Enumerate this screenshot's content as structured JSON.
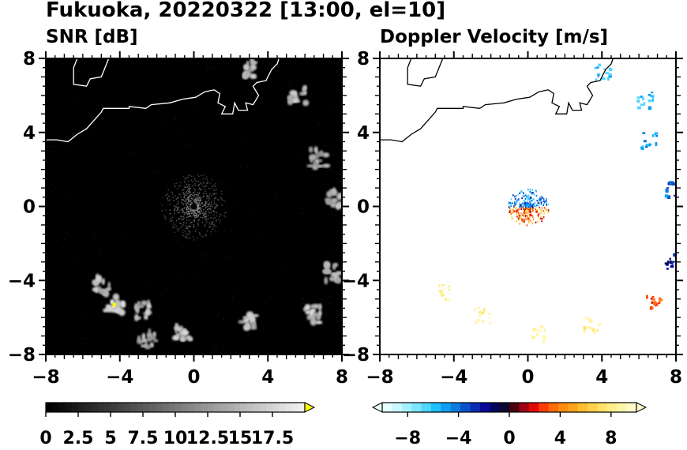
{
  "title": "Fukuoka, 20220322 [13:00, el=10]",
  "chart_data": [
    {
      "type": "heatmap",
      "title": "SNR [dB]",
      "xlim": [
        -8,
        8
      ],
      "ylim": [
        -8,
        8
      ],
      "xticks": [
        "−8",
        "−4",
        "0",
        "4",
        "8"
      ],
      "yticks": [
        "8",
        "4",
        "0",
        "−4",
        "−8"
      ],
      "background": "#000000",
      "colorbar": {
        "ticks": [
          "0",
          "2.5",
          "5",
          "7.5",
          "10",
          "12.5",
          "15",
          "17.5"
        ],
        "range": [
          0,
          20
        ],
        "extend": "max",
        "low_color": "#000000",
        "high_color": "#f0f0f0",
        "over_color": "#ffff00"
      },
      "echo_clusters": [
        {
          "x": 5.6,
          "y": 6.0,
          "level": 14
        },
        {
          "x": 3.2,
          "y": 7.4,
          "level": 13
        },
        {
          "x": 6.7,
          "y": 2.6,
          "level": 12
        },
        {
          "x": 7.7,
          "y": 0.4,
          "level": 12
        },
        {
          "x": 7.4,
          "y": -3.6,
          "level": 14
        },
        {
          "x": 6.4,
          "y": -5.8,
          "level": 14
        },
        {
          "x": 3.0,
          "y": -6.3,
          "level": 13
        },
        {
          "x": -0.5,
          "y": -6.9,
          "level": 14
        },
        {
          "x": -2.5,
          "y": -7.2,
          "level": 12
        },
        {
          "x": -2.8,
          "y": -5.6,
          "level": 13
        },
        {
          "x": -4.3,
          "y": -5.3,
          "level": 16
        },
        {
          "x": -4.9,
          "y": -4.3,
          "level": 14
        }
      ]
    },
    {
      "type": "heatmap",
      "title": "Doppler Velocity [m/s]",
      "xlim": [
        -8,
        8
      ],
      "ylim": [
        -8,
        8
      ],
      "xticks": [
        "−8",
        "−4",
        "0",
        "4",
        "8"
      ],
      "yticks": [
        "8",
        "4",
        "0",
        "−4",
        "−8"
      ],
      "background": "#ffffff",
      "colorbar": {
        "ticks": [
          "−8",
          "−4",
          "0",
          "4",
          "8"
        ],
        "range": [
          -10,
          10
        ],
        "extend": "both",
        "colors": [
          "#e6ffff",
          "#c9f9ff",
          "#a6f1ff",
          "#7de6ff",
          "#4fd6ff",
          "#1fbfff",
          "#0f9ff0",
          "#0b7ce0",
          "#0a52cc",
          "#0a2eb3",
          "#0a0a99",
          "#050560",
          "#0a0a2e",
          "#4a0010",
          "#a00014",
          "#e00a0a",
          "#ff3b0a",
          "#ff6a0a",
          "#ff8c0f",
          "#ffa51a",
          "#ffbe2e",
          "#ffd24a",
          "#ffe266",
          "#ffee88",
          "#fff5aa",
          "#fffacc"
        ]
      },
      "echo_clusters": [
        {
          "x": 4.0,
          "y": 7.3,
          "v": -6
        },
        {
          "x": 6.3,
          "y": 5.8,
          "v": -6
        },
        {
          "x": 6.5,
          "y": 3.6,
          "v": -5
        },
        {
          "x": 7.8,
          "y": 1.0,
          "v": -4
        },
        {
          "x": 7.8,
          "y": -2.9,
          "v": -2
        },
        {
          "x": 6.8,
          "y": -5.2,
          "v": 3
        },
        {
          "x": 3.4,
          "y": -6.3,
          "v": 9
        },
        {
          "x": 0.5,
          "y": -6.8,
          "v": 9
        },
        {
          "x": -2.5,
          "y": -5.8,
          "v": 9
        },
        {
          "x": -4.5,
          "y": -4.6,
          "v": 9
        }
      ]
    }
  ]
}
